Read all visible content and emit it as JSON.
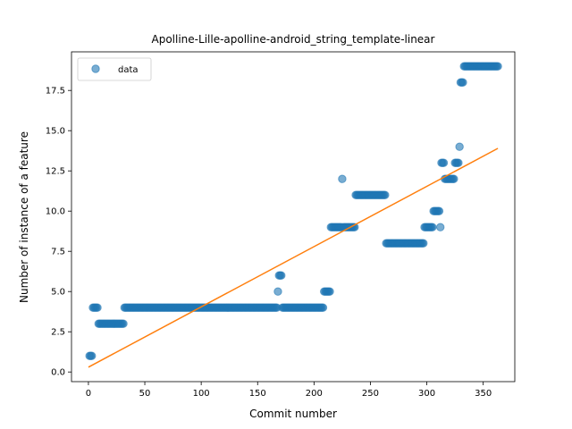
{
  "chart_data": {
    "type": "scatter",
    "title": "Apolline-Lille-apolline-android_string_template-linear",
    "xlabel": "Commit number",
    "ylabel": "Number of instance of a feature",
    "xlim": [
      -15,
      378
    ],
    "ylim": [
      -0.6,
      19.9
    ],
    "xticks": [
      0,
      50,
      100,
      150,
      200,
      250,
      300,
      350
    ],
    "yticks": [
      0.0,
      2.5,
      5.0,
      7.5,
      10.0,
      12.5,
      15.0,
      17.5
    ],
    "ytick_labels": [
      "0.0",
      "2.5",
      "5.0",
      "7.5",
      "10.0",
      "12.5",
      "15.0",
      "17.5"
    ],
    "legend": {
      "position": "upper-left",
      "entries": [
        "data"
      ]
    },
    "colors": {
      "data": "#1f77b4",
      "fit": "#ff7f0e"
    },
    "series": [
      {
        "name": "data",
        "segments": [
          {
            "x_from": 1,
            "x_to": 3,
            "y": 1
          },
          {
            "x_from": 4,
            "x_to": 8,
            "y": 4
          },
          {
            "x_from": 9,
            "x_to": 31,
            "y": 3
          },
          {
            "x_from": 32,
            "x_to": 167,
            "y": 4
          },
          {
            "x_from": 168,
            "x_to": 168,
            "y": 5
          },
          {
            "x_from": 169,
            "x_to": 171,
            "y": 6
          },
          {
            "x_from": 172,
            "x_to": 208,
            "y": 4
          },
          {
            "x_from": 209,
            "x_to": 214,
            "y": 5
          },
          {
            "x_from": 215,
            "x_to": 224,
            "y": 9
          },
          {
            "x_from": 225,
            "x_to": 225,
            "y": 12
          },
          {
            "x_from": 226,
            "x_to": 236,
            "y": 9
          },
          {
            "x_from": 237,
            "x_to": 263,
            "y": 11
          },
          {
            "x_from": 264,
            "x_to": 297,
            "y": 8
          },
          {
            "x_from": 298,
            "x_to": 305,
            "y": 9
          },
          {
            "x_from": 306,
            "x_to": 311,
            "y": 10
          },
          {
            "x_from": 312,
            "x_to": 312,
            "y": 9
          },
          {
            "x_from": 313,
            "x_to": 315,
            "y": 13
          },
          {
            "x_from": 316,
            "x_to": 324,
            "y": 12
          },
          {
            "x_from": 325,
            "x_to": 328,
            "y": 13
          },
          {
            "x_from": 329,
            "x_to": 329,
            "y": 14
          },
          {
            "x_from": 330,
            "x_to": 332,
            "y": 18
          },
          {
            "x_from": 333,
            "x_to": 363,
            "y": 19
          }
        ]
      },
      {
        "name": "fit",
        "type": "line",
        "x": [
          0,
          363
        ],
        "y": [
          0.3,
          13.9
        ]
      }
    ]
  }
}
